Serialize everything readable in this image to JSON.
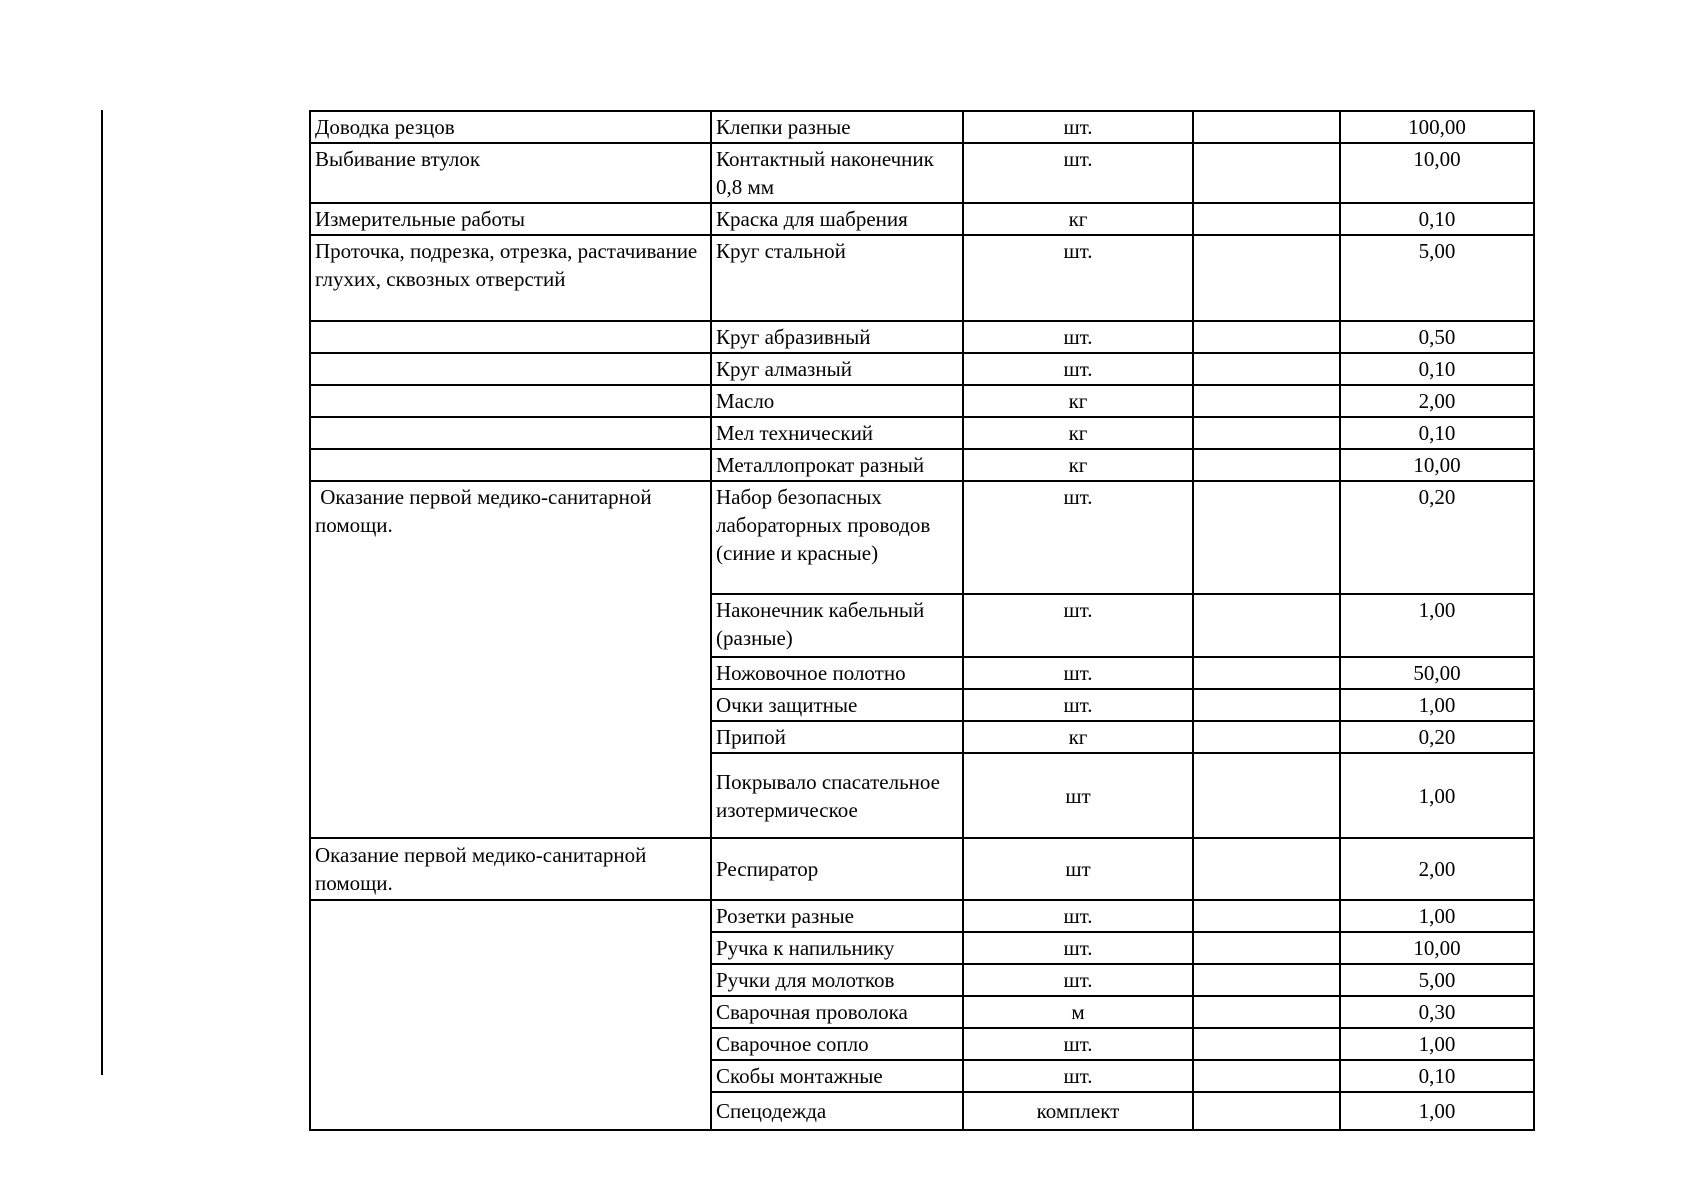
{
  "colors": {
    "text": "#000000",
    "border": "#000000",
    "background": "#ffffff"
  },
  "table": {
    "work_cells": [
      {
        "row": 0,
        "span": 1,
        "text": "Доводка резцов"
      },
      {
        "row": 1,
        "span": 1,
        "text": "Выбивание втулок"
      },
      {
        "row": 2,
        "span": 1,
        "text": "Измерительные работы"
      },
      {
        "row": 3,
        "span": 1,
        "text": "Проточка, подрезка, отрезка, растачивание глухих, сквозных отверстий"
      },
      {
        "row": 4,
        "span": 1,
        "text": ""
      },
      {
        "row": 5,
        "span": 1,
        "text": ""
      },
      {
        "row": 6,
        "span": 1,
        "text": ""
      },
      {
        "row": 7,
        "span": 1,
        "text": ""
      },
      {
        "row": 8,
        "span": 1,
        "text": ""
      },
      {
        "row": 9,
        "span": 6,
        "text": " Оказание первой медико-санитарной помощи."
      },
      {
        "row": 15,
        "span": 1,
        "text": "Оказание первой медико-санитарной помощи."
      },
      {
        "row": 16,
        "span": 7,
        "text": ""
      }
    ],
    "rows": [
      {
        "material": "Клепки разные",
        "unit": "шт.",
        "qty": "100,00"
      },
      {
        "material": "Контактный наконечник 0,8 мм",
        "unit": "шт.",
        "qty": "10,00"
      },
      {
        "material": "Краска для шабрения",
        "unit": "кг",
        "qty": "0,10"
      },
      {
        "material": "Круг стальной",
        "unit": "шт.",
        "qty": "5,00"
      },
      {
        "material": "Круг абразивный",
        "unit": "шт.",
        "qty": "0,50"
      },
      {
        "material": "Круг алмазный",
        "unit": "шт.",
        "qty": "0,10"
      },
      {
        "material": "Масло",
        "unit": "кг",
        "qty": "2,00"
      },
      {
        "material": "Мел технический",
        "unit": "кг",
        "qty": "0,10"
      },
      {
        "material": "Металлопрокат разный",
        "unit": "кг",
        "qty": "10,00"
      },
      {
        "material": "Набор безопасных лабораторных проводов (синие и красные)",
        "unit": "шт.",
        "qty": "0,20"
      },
      {
        "material": "Наконечник кабельный (разные)",
        "unit": "шт.",
        "qty": "1,00"
      },
      {
        "material": "Ножовочное полотно",
        "unit": "шт.",
        "qty": "50,00"
      },
      {
        "material": "Очки защитные",
        "unit": "шт.",
        "qty": "1,00"
      },
      {
        "material": "Припой",
        "unit": "кг",
        "qty": "0,20"
      },
      {
        "material": "Покрывало спасательное изотермическое",
        "unit": "шт",
        "qty": "1,00"
      },
      {
        "material": "Респиратор",
        "unit": "шт",
        "qty": "2,00"
      },
      {
        "material": "Розетки разные",
        "unit": "шт.",
        "qty": "1,00"
      },
      {
        "material": "Ручка к напильнику",
        "unit": "шт.",
        "qty": "10,00"
      },
      {
        "material": "Ручки для молотков",
        "unit": "шт.",
        "qty": "5,00"
      },
      {
        "material": "Сварочная проволока",
        "unit": "м",
        "qty": "0,30"
      },
      {
        "material": "Сварочное сопло",
        "unit": "шт.",
        "qty": "1,00"
      },
      {
        "material": "Скобы монтажные",
        "unit": "шт.",
        "qty": "0,10"
      },
      {
        "material": "Спецодежда",
        "unit": "комплект",
        "qty": "1,00"
      }
    ]
  }
}
